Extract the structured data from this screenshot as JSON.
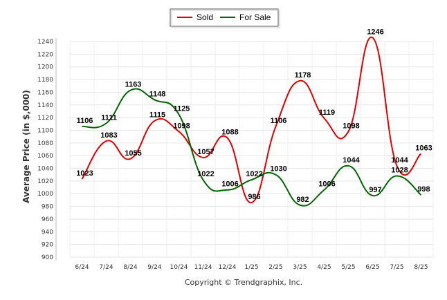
{
  "chart_data": {
    "type": "line",
    "xlabel": "",
    "ylabel": "Average Price (in $,000)",
    "categories": [
      "6/24",
      "7/24",
      "8/24",
      "9/24",
      "10/24",
      "11/24",
      "12/24",
      "1/25",
      "2/25",
      "3/25",
      "4/25",
      "5/25",
      "6/25",
      "7/25",
      "8/25"
    ],
    "series": [
      {
        "name": "Sold",
        "color": "#e00000",
        "values": [
          1023,
          1083,
          1055,
          1115,
          1098,
          1057,
          1088,
          986,
          1106,
          1178,
          1119,
          1098,
          1246,
          1044,
          1063
        ]
      },
      {
        "name": "For Sale",
        "color": "#006400",
        "values": [
          1106,
          1111,
          1163,
          1148,
          1125,
          1022,
          1006,
          1022,
          1030,
          982,
          1006,
          1044,
          997,
          1028,
          998
        ]
      }
    ],
    "ylim": [
      900,
      1240
    ],
    "yticks": [
      "900",
      "920",
      "940",
      "960",
      "980",
      "1000",
      "1020",
      "1040",
      "1060",
      "1080",
      "1100",
      "1120",
      "1140",
      "1160",
      "1180",
      "1200",
      "1220",
      "1240"
    ],
    "grid": true,
    "legend_position": "top-center"
  },
  "footer": {
    "copyright": "Copyright © Trendgraphix, Inc."
  }
}
